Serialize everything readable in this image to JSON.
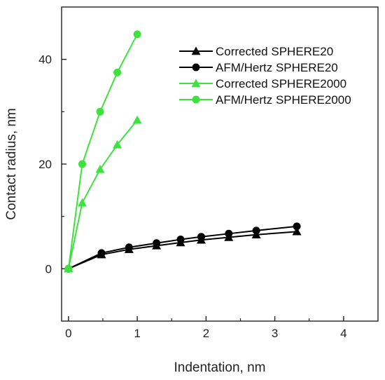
{
  "chart_data": {
    "type": "line",
    "xlabel": "Indentation, nm",
    "ylabel": "Contact radius, nm",
    "xlim": [
      -0.1,
      4.5
    ],
    "ylim": [
      -10,
      50
    ],
    "x_ticks": [
      0,
      1,
      2,
      3,
      4
    ],
    "y_ticks": [
      0,
      20,
      40
    ],
    "x_tick_labels": [
      "0",
      "1",
      "2",
      "3",
      "4"
    ],
    "y_tick_labels": [
      "0",
      "20",
      "40"
    ],
    "grid": false,
    "legend_position": "top-right",
    "series": [
      {
        "name": "Corrected SPHERE20",
        "color": "#000000",
        "marker": "triangle",
        "x": [
          0,
          0.48,
          0.88,
          1.28,
          1.63,
          1.93,
          2.33,
          2.73,
          3.32
        ],
        "y": [
          0,
          2.7,
          3.7,
          4.4,
          5.0,
          5.5,
          6.0,
          6.5,
          7.1
        ]
      },
      {
        "name": "AFM/Hertz SPHERE20",
        "color": "#000000",
        "marker": "circle",
        "x": [
          0,
          0.48,
          0.88,
          1.28,
          1.63,
          1.93,
          2.33,
          2.73,
          3.32
        ],
        "y": [
          0,
          3.0,
          4.1,
          4.9,
          5.6,
          6.1,
          6.7,
          7.3,
          8.1
        ]
      },
      {
        "name": "Corrected SPHERE2000",
        "color": "#3ee23e",
        "marker": "triangle",
        "x": [
          0,
          0.2,
          0.46,
          0.71,
          1.0
        ],
        "y": [
          0,
          12.6,
          19.0,
          23.7,
          28.4
        ]
      },
      {
        "name": "AFM/Hertz SPHERE2000",
        "color": "#3ee23e",
        "marker": "circle",
        "x": [
          0,
          0.2,
          0.46,
          0.71,
          1.0
        ],
        "y": [
          0,
          20.0,
          30.0,
          37.5,
          44.8
        ]
      }
    ]
  }
}
